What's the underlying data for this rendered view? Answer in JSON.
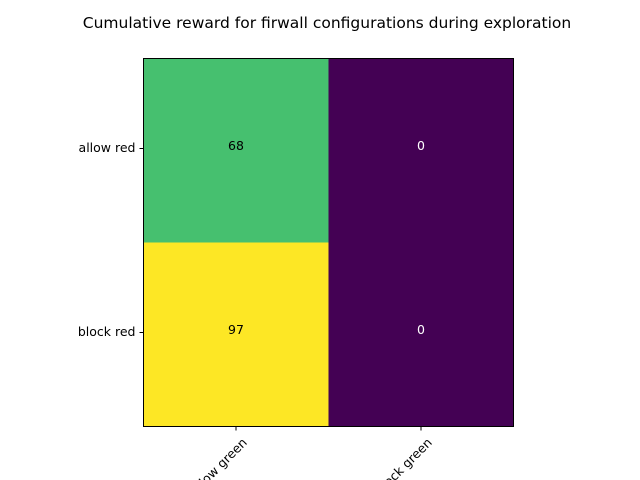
{
  "chart_data": {
    "type": "heatmap",
    "title": "Cumulative reward for firwall configurations during exploration",
    "rows": [
      "allow red",
      "block red"
    ],
    "cols": [
      "allow green",
      "block green"
    ],
    "values": [
      [
        68,
        0
      ],
      [
        97,
        0
      ]
    ],
    "colormap": "viridis",
    "value_range": [
      0,
      97
    ],
    "cell_colors": [
      [
        "#46c06f",
        "#440154"
      ],
      [
        "#fde725",
        "#440154"
      ]
    ],
    "label_colors": {
      "on_light": "#000000",
      "on_dark": "#ffffff"
    },
    "x_tick_rotation": "45deg"
  }
}
